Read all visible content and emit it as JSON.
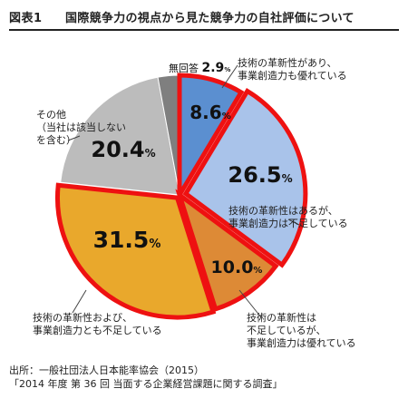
{
  "header": {
    "figure_label": "図表1",
    "title": "国際競争力の視点から見た競争力の自社評価について"
  },
  "chart_data": {
    "type": "pie",
    "title": "国際競争力の視点から見た競争力の自社評価について",
    "unit": "%",
    "slices": [
      {
        "label_lines": [
          "技術の革新性があり、",
          "事業創造力も優れている"
        ],
        "value": 8.6,
        "value_text": "8.6",
        "color": "#5b8fd0",
        "highlight": true
      },
      {
        "label_lines": [
          "技術の革新性はあるが、",
          "事業創造力は不足している"
        ],
        "value": 26.5,
        "value_text": "26.5",
        "color": "#a9c3ea",
        "highlight": true
      },
      {
        "label_lines": [
          "技術の革新性は",
          "不足しているが、",
          "事業創造力は優れている"
        ],
        "value": 10.0,
        "value_text": "10.0",
        "color": "#dd8a36",
        "highlight": true
      },
      {
        "label_lines": [
          "技術の革新性および、",
          "事業創造力とも不足している"
        ],
        "value": 31.5,
        "value_text": "31.5",
        "color": "#e9a82c",
        "highlight": true
      },
      {
        "label_lines": [
          "その他",
          "（当社は該当しない",
          "を含む）"
        ],
        "value": 20.4,
        "value_text": "20.4",
        "color": "#bcbcbc",
        "highlight": false
      },
      {
        "label_lines": [
          "無回答"
        ],
        "value": 2.9,
        "value_text": "2.9",
        "color": "#7f7f7f",
        "highlight": false
      }
    ],
    "highlight_color": "#ee1111"
  },
  "source": {
    "line1": "出所：一般社団法人日本能率協会（2015）",
    "line2": "「2014 年度 第 36 回 当面する企業経営課題に関する調査」"
  }
}
